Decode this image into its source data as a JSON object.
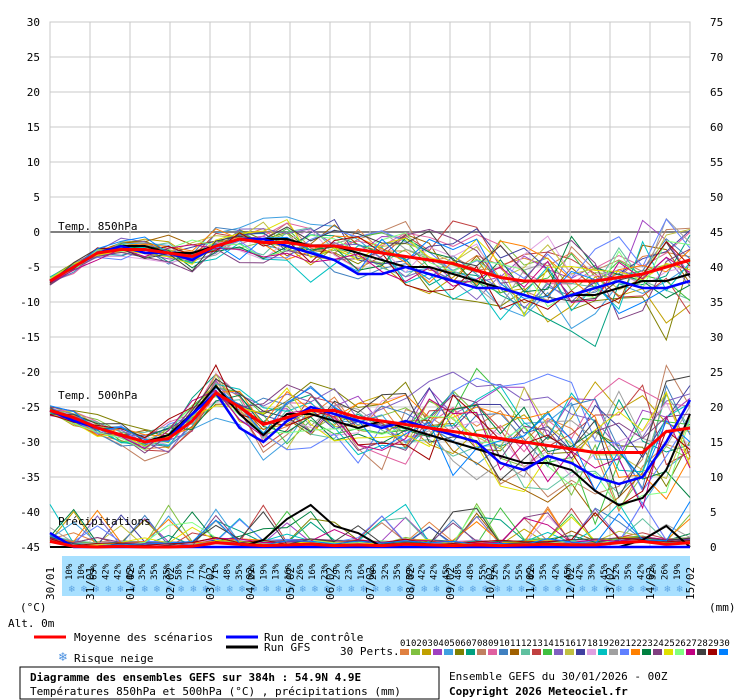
{
  "chart_data": {
    "type": "line",
    "title": "Diagramme des ensembles GEFS sur 384h : 54.9N 4.9E",
    "subtitle": "Températures 850hPa et 500hPa (°C) , précipitations (mm)",
    "run_info": "Ensemble GEFS du 30/01/2026 - 00Z",
    "copyright": "Copyright 2026 Meteociel.fr",
    "left_axis": {
      "unit": "(°C)",
      "ticks": [
        30,
        25,
        20,
        15,
        10,
        5,
        0,
        -5,
        -10,
        -15,
        -20,
        -25,
        -30,
        -35,
        -40,
        -45
      ],
      "ylim": [
        -45,
        30
      ]
    },
    "right_axis": {
      "unit": "(mm)",
      "ticks": [
        75,
        70,
        65,
        60,
        55,
        50,
        45,
        40,
        35,
        30,
        25,
        20,
        15,
        10,
        5,
        0
      ],
      "ylim": [
        0,
        75
      ]
    },
    "x_labels": [
      "30/01",
      "31/01",
      "01/02",
      "02/02",
      "03/02",
      "04/02",
      "05/02",
      "06/02",
      "07/02",
      "08/02",
      "09/02",
      "10/02",
      "11/02",
      "12/02",
      "13/02",
      "14/02",
      "15/02"
    ],
    "alt_label": "Alt. 0m",
    "snow_risk_pct": [
      "10%",
      "10%",
      "65%",
      "42%",
      "42%",
      "45%",
      "35%",
      "35%",
      "35%",
      "58%",
      "71%",
      "77%",
      "71%",
      "48%",
      "35%",
      "29%",
      "19%",
      "13%",
      "16%",
      "26%",
      "16%",
      "23%",
      "29%",
      "23%",
      "16%",
      "26%",
      "32%",
      "35%",
      "39%",
      "42%",
      "42%",
      "45%",
      "48%",
      "48%",
      "55%",
      "52%",
      "52%",
      "55%",
      "45%",
      "35%",
      "42%",
      "45%",
      "42%",
      "39%",
      "45%",
      "52%",
      "35%",
      "42%",
      "32%",
      "26%",
      "19%"
    ],
    "section_labels": {
      "t850": "Temp. 850hPa",
      "t500": "Temp. 500hPa",
      "precip": "Précipitations"
    },
    "legend": {
      "mean": "Moyenne des scénarios",
      "control": "Run de contrôle",
      "gfs": "Run GFS",
      "snow": "Risque neige",
      "perts": "30 Perts."
    },
    "colors": {
      "mean": "#ff0000",
      "control": "#0000ff",
      "gfs": "#000000",
      "grid": "#c0c0c0",
      "snow": "#a8e0ff"
    },
    "member_numbers": [
      "01",
      "02",
      "03",
      "04",
      "05",
      "06",
      "07",
      "08",
      "09",
      "10",
      "11",
      "12",
      "13",
      "14",
      "15",
      "16",
      "17",
      "18",
      "19",
      "20",
      "21",
      "22",
      "23",
      "24",
      "25",
      "26",
      "27",
      "28",
      "29",
      "30"
    ],
    "member_colors": [
      "#e08040",
      "#80c040",
      "#c0a000",
      "#a040c0",
      "#40a0e0",
      "#808000",
      "#00a080",
      "#c08060",
      "#e060a0",
      "#4080c0",
      "#a06000",
      "#60c0a0",
      "#c04040",
      "#40c040",
      "#8060c0",
      "#c0c040",
      "#4040a0",
      "#e0a0e0",
      "#00c0c0",
      "#a0a0a0",
      "#6080ff",
      "#ff8000",
      "#008040",
      "#804080",
      "#e0e000",
      "#80ff80",
      "#c00080",
      "#404040",
      "#a00000",
      "#0080ff"
    ],
    "series": [
      {
        "name": "Moyenne des scénarios",
        "section": "t850",
        "values": [
          -7,
          -5,
          -3,
          -2.5,
          -2.5,
          -3,
          -3.5,
          -2,
          -1,
          -1.5,
          -1.5,
          -2,
          -2,
          -2.5,
          -3,
          -3.5,
          -4,
          -4.5,
          -5.5,
          -6.5,
          -7,
          -7,
          -7,
          -7,
          -6.5,
          -6,
          -5,
          -4
        ]
      },
      {
        "name": "Run de contrôle",
        "section": "t850",
        "values": [
          -7,
          -5,
          -3,
          -2,
          -3,
          -3,
          -4,
          -2,
          -1,
          -1,
          -2,
          -3,
          -4,
          -6,
          -6,
          -5,
          -6,
          -7,
          -8,
          -8,
          -9,
          -10,
          -9,
          -8,
          -7,
          -8,
          -8,
          -7
        ]
      },
      {
        "name": "Run GFS",
        "section": "t850",
        "values": [
          -7,
          -5,
          -3,
          -2,
          -2,
          -3,
          -3,
          -2,
          -1,
          -1,
          -1,
          -2,
          -2,
          -3,
          -4,
          -5,
          -5,
          -6,
          -7,
          -8,
          -9,
          -10,
          -9,
          -9,
          -8,
          -7,
          -7,
          -6
        ]
      },
      {
        "name": "Moyenne des scénarios",
        "section": "t500",
        "values": [
          -25.5,
          -26.5,
          -28,
          -29,
          -30,
          -29.5,
          -27,
          -23,
          -25,
          -27.5,
          -26.5,
          -25.5,
          -25.5,
          -26.5,
          -27,
          -27.5,
          -28,
          -28.5,
          -29,
          -29.5,
          -30,
          -30.5,
          -31,
          -31.5,
          -31.5,
          -31.5,
          -28.5,
          -28
        ]
      },
      {
        "name": "Run de contrôle",
        "section": "t500",
        "values": [
          -25.5,
          -27,
          -28,
          -29,
          -30,
          -29.5,
          -26,
          -23,
          -28,
          -30,
          -27,
          -25,
          -26,
          -27,
          -28,
          -27,
          -28,
          -29,
          -30,
          -33,
          -34,
          -32,
          -33,
          -35,
          -36,
          -35,
          -30,
          -24
        ]
      },
      {
        "name": "Run GFS",
        "section": "t500",
        "values": [
          -25.5,
          -26.5,
          -28,
          -29,
          -30,
          -29,
          -26,
          -22,
          -26,
          -29,
          -26,
          -26,
          -27,
          -28,
          -27,
          -28,
          -29,
          -30,
          -31,
          -32,
          -33,
          -33,
          -34,
          -37,
          -39,
          -38,
          -34,
          -26
        ]
      },
      {
        "name": "Moyenne des scénarios",
        "section": "precip",
        "values": [
          0.8,
          0.1,
          0,
          0.1,
          0,
          0,
          0.1,
          0.6,
          0.4,
          0.2,
          0.3,
          0.4,
          0.2,
          0.3,
          0.2,
          0.4,
          0.3,
          0.2,
          0.3,
          0.2,
          0.3,
          0.4,
          0.3,
          0.3,
          0.6,
          0.8,
          0.4,
          0.6
        ]
      },
      {
        "name": "Run de contrôle",
        "section": "precip",
        "values": [
          2,
          0,
          0,
          0,
          0,
          0,
          0,
          0,
          0,
          0,
          0,
          0,
          0,
          0,
          0,
          0,
          0,
          0,
          0,
          0,
          0,
          0,
          0,
          0,
          0,
          0,
          0,
          0
        ]
      },
      {
        "name": "Run GFS",
        "section": "precip",
        "values": [
          0,
          0,
          0,
          0,
          0,
          0,
          0,
          0,
          0,
          1,
          4,
          6,
          3,
          2,
          0,
          0,
          0,
          0,
          0,
          0,
          0,
          0,
          0,
          0,
          0,
          1,
          3,
          0
        ]
      }
    ]
  }
}
